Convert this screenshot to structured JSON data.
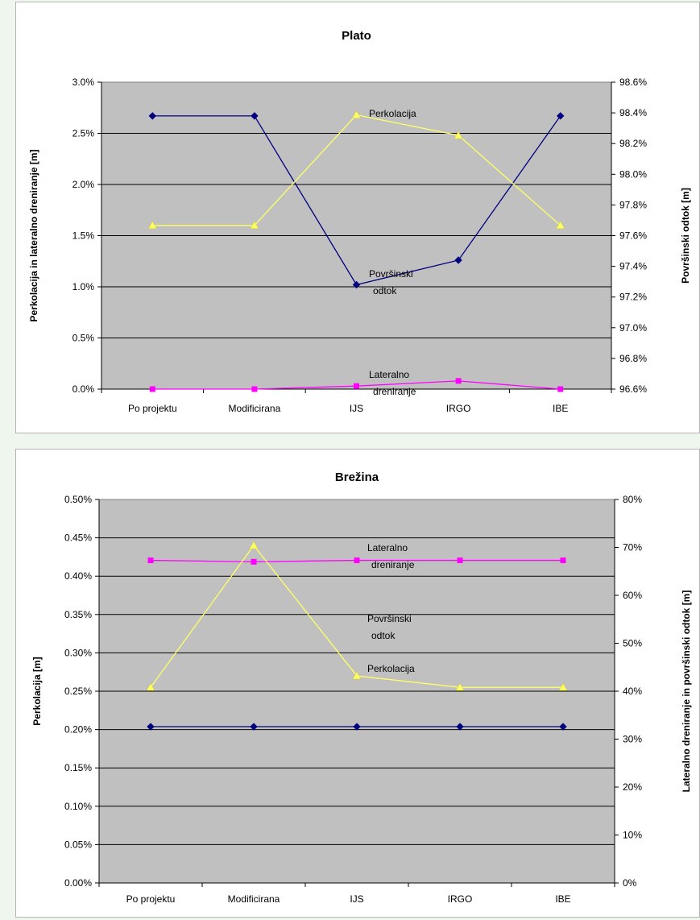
{
  "chart_data": [
    {
      "type": "line",
      "title": "Plato",
      "categories": [
        "Po projektu",
        "Modificirana",
        "IJS",
        "IRGO",
        "IBE"
      ],
      "y_left": {
        "label": "Perkolacija in lateralno dreniranje [m]",
        "range": [
          0,
          3
        ],
        "step": 0.5,
        "decimals": 1,
        "suffix": "%"
      },
      "y_right": {
        "label": "Površinski odtok [m]",
        "range": [
          96.6,
          98.6
        ],
        "step": 0.2,
        "decimals": 1,
        "suffix": "%"
      },
      "grid": true,
      "series": [
        {
          "name": "Površinski\nodtok",
          "axis": "right",
          "color": "#000080",
          "marker": "diamond",
          "values": [
            98.38,
            98.38,
            97.28,
            97.44,
            98.38
          ]
        },
        {
          "name": "Perkolacija",
          "axis": "left",
          "color": "#ffff66",
          "marker": "triangle",
          "values": [
            1.6,
            1.6,
            2.68,
            2.48,
            1.6
          ]
        },
        {
          "name": "Lateralno\ndreniranje",
          "axis": "left",
          "color": "#ff00ff",
          "marker": "square",
          "values": [
            0.0,
            0.0,
            0.03,
            0.08,
            0.0
          ]
        }
      ]
    },
    {
      "type": "line",
      "title": "Brežina",
      "categories": [
        "Po projektu",
        "Modificirana",
        "IJS",
        "IRGO",
        "IBE"
      ],
      "y_left": {
        "label": "Perkolacija [m]",
        "range": [
          0,
          0.5
        ],
        "step": 0.05,
        "decimals": 2,
        "suffix": "%"
      },
      "y_right": {
        "label": "Lateralno dreniranje in površinski odtok [m]",
        "range": [
          0,
          80
        ],
        "step": 10,
        "decimals": 0,
        "suffix": "%"
      },
      "grid": true,
      "series": [
        {
          "name": "Lateralno\ndreniranje",
          "axis": "right",
          "color": "#ff00ff",
          "marker": "square",
          "values": [
            67.3,
            67.0,
            67.3,
            67.3,
            67.3
          ]
        },
        {
          "name": "Perkolacija",
          "axis": "left",
          "color": "#ffff66",
          "marker": "triangle",
          "values": [
            0.255,
            0.44,
            0.27,
            0.255,
            0.255
          ]
        },
        {
          "name": "Površinski\nodtok",
          "axis": "right",
          "color": "#000080",
          "marker": "diamond",
          "values": [
            32.6,
            32.6,
            32.6,
            32.6,
            32.6
          ]
        }
      ]
    }
  ]
}
